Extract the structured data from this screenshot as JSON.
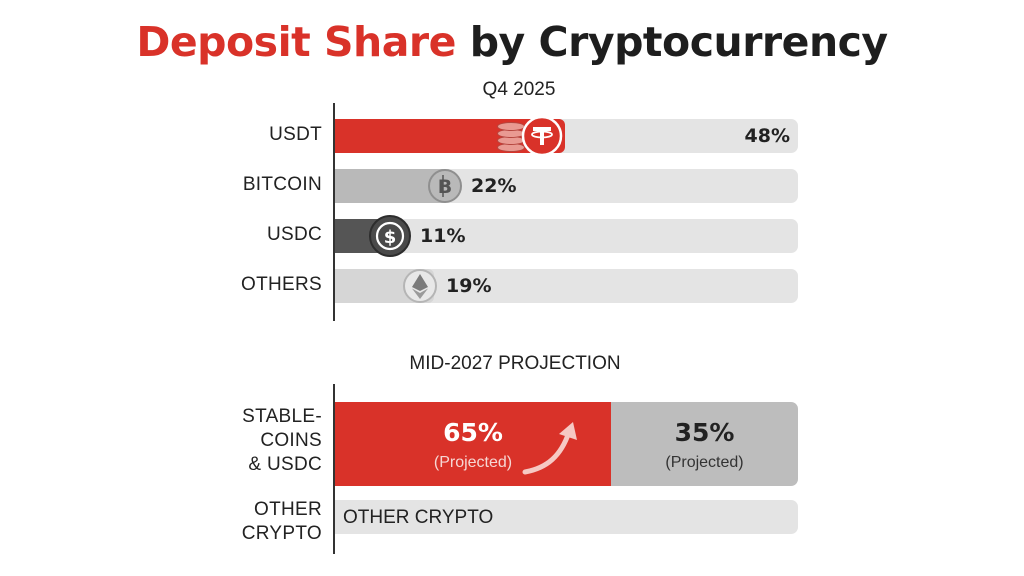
{
  "title": {
    "accent": "Deposit Share",
    "rest": "by Cryptocurrency"
  },
  "colors": {
    "accent": "#d93229",
    "bitcoin": "#b9b9b9",
    "usdc": "#555555",
    "others": "#d6d6d6",
    "track": "#e4e4e4",
    "projection_other": "#bdbdbd"
  },
  "chart_data": [
    {
      "type": "bar",
      "orientation": "horizontal",
      "title": "Q4 2025",
      "categories": [
        "USDT",
        "BITCOIN",
        "USDC",
        "OTHERS"
      ],
      "values": [
        48,
        22,
        11,
        19
      ],
      "value_labels": [
        "48%",
        "22%",
        "11%",
        "19%"
      ],
      "icons": [
        "tether-icon",
        "bitcoin-icon",
        "usdc-icon",
        "ethereum-icon"
      ],
      "xlim": [
        0,
        100
      ]
    },
    {
      "type": "bar",
      "orientation": "horizontal",
      "stacked": true,
      "title": "MID-2027 PROJECTION",
      "categories": [
        "STABLE-\nCOINS\n& USDC",
        "OTHER\nCRYPTO"
      ],
      "segments": [
        {
          "value": 65,
          "label": "65%",
          "note": "(Projected)"
        },
        {
          "value": 35,
          "label": "35%",
          "note": "(Projected)"
        }
      ],
      "other_row_text": "OTHER CRYPTO",
      "xlim": [
        0,
        100
      ]
    }
  ]
}
